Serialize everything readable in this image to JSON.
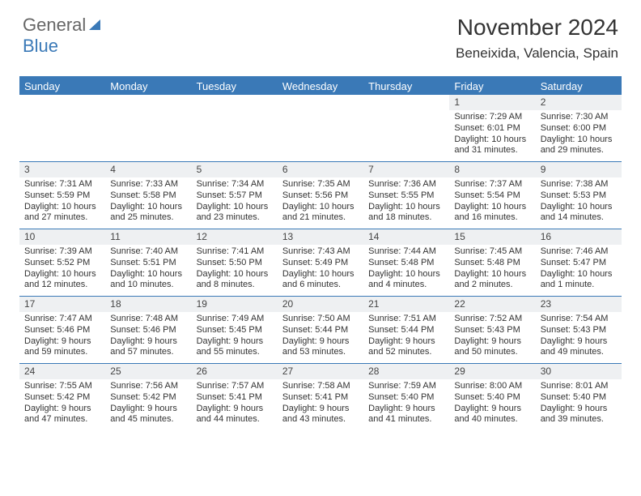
{
  "logo": {
    "part1": "General",
    "part2": "Blue"
  },
  "title": "November 2024",
  "location": "Beneixida, Valencia, Spain",
  "colors": {
    "accent": "#3a79b7",
    "header_bg": "#3a79b7",
    "day_num_bg": "#eef0f2"
  },
  "weekdays": [
    "Sunday",
    "Monday",
    "Tuesday",
    "Wednesday",
    "Thursday",
    "Friday",
    "Saturday"
  ],
  "weeks": [
    [
      {
        "n": "",
        "sr": "",
        "ss": "",
        "dl": ""
      },
      {
        "n": "",
        "sr": "",
        "ss": "",
        "dl": ""
      },
      {
        "n": "",
        "sr": "",
        "ss": "",
        "dl": ""
      },
      {
        "n": "",
        "sr": "",
        "ss": "",
        "dl": ""
      },
      {
        "n": "",
        "sr": "",
        "ss": "",
        "dl": ""
      },
      {
        "n": "1",
        "sr": "Sunrise: 7:29 AM",
        "ss": "Sunset: 6:01 PM",
        "dl": "Daylight: 10 hours and 31 minutes."
      },
      {
        "n": "2",
        "sr": "Sunrise: 7:30 AM",
        "ss": "Sunset: 6:00 PM",
        "dl": "Daylight: 10 hours and 29 minutes."
      }
    ],
    [
      {
        "n": "3",
        "sr": "Sunrise: 7:31 AM",
        "ss": "Sunset: 5:59 PM",
        "dl": "Daylight: 10 hours and 27 minutes."
      },
      {
        "n": "4",
        "sr": "Sunrise: 7:33 AM",
        "ss": "Sunset: 5:58 PM",
        "dl": "Daylight: 10 hours and 25 minutes."
      },
      {
        "n": "5",
        "sr": "Sunrise: 7:34 AM",
        "ss": "Sunset: 5:57 PM",
        "dl": "Daylight: 10 hours and 23 minutes."
      },
      {
        "n": "6",
        "sr": "Sunrise: 7:35 AM",
        "ss": "Sunset: 5:56 PM",
        "dl": "Daylight: 10 hours and 21 minutes."
      },
      {
        "n": "7",
        "sr": "Sunrise: 7:36 AM",
        "ss": "Sunset: 5:55 PM",
        "dl": "Daylight: 10 hours and 18 minutes."
      },
      {
        "n": "8",
        "sr": "Sunrise: 7:37 AM",
        "ss": "Sunset: 5:54 PM",
        "dl": "Daylight: 10 hours and 16 minutes."
      },
      {
        "n": "9",
        "sr": "Sunrise: 7:38 AM",
        "ss": "Sunset: 5:53 PM",
        "dl": "Daylight: 10 hours and 14 minutes."
      }
    ],
    [
      {
        "n": "10",
        "sr": "Sunrise: 7:39 AM",
        "ss": "Sunset: 5:52 PM",
        "dl": "Daylight: 10 hours and 12 minutes."
      },
      {
        "n": "11",
        "sr": "Sunrise: 7:40 AM",
        "ss": "Sunset: 5:51 PM",
        "dl": "Daylight: 10 hours and 10 minutes."
      },
      {
        "n": "12",
        "sr": "Sunrise: 7:41 AM",
        "ss": "Sunset: 5:50 PM",
        "dl": "Daylight: 10 hours and 8 minutes."
      },
      {
        "n": "13",
        "sr": "Sunrise: 7:43 AM",
        "ss": "Sunset: 5:49 PM",
        "dl": "Daylight: 10 hours and 6 minutes."
      },
      {
        "n": "14",
        "sr": "Sunrise: 7:44 AM",
        "ss": "Sunset: 5:48 PM",
        "dl": "Daylight: 10 hours and 4 minutes."
      },
      {
        "n": "15",
        "sr": "Sunrise: 7:45 AM",
        "ss": "Sunset: 5:48 PM",
        "dl": "Daylight: 10 hours and 2 minutes."
      },
      {
        "n": "16",
        "sr": "Sunrise: 7:46 AM",
        "ss": "Sunset: 5:47 PM",
        "dl": "Daylight: 10 hours and 1 minute."
      }
    ],
    [
      {
        "n": "17",
        "sr": "Sunrise: 7:47 AM",
        "ss": "Sunset: 5:46 PM",
        "dl": "Daylight: 9 hours and 59 minutes."
      },
      {
        "n": "18",
        "sr": "Sunrise: 7:48 AM",
        "ss": "Sunset: 5:46 PM",
        "dl": "Daylight: 9 hours and 57 minutes."
      },
      {
        "n": "19",
        "sr": "Sunrise: 7:49 AM",
        "ss": "Sunset: 5:45 PM",
        "dl": "Daylight: 9 hours and 55 minutes."
      },
      {
        "n": "20",
        "sr": "Sunrise: 7:50 AM",
        "ss": "Sunset: 5:44 PM",
        "dl": "Daylight: 9 hours and 53 minutes."
      },
      {
        "n": "21",
        "sr": "Sunrise: 7:51 AM",
        "ss": "Sunset: 5:44 PM",
        "dl": "Daylight: 9 hours and 52 minutes."
      },
      {
        "n": "22",
        "sr": "Sunrise: 7:52 AM",
        "ss": "Sunset: 5:43 PM",
        "dl": "Daylight: 9 hours and 50 minutes."
      },
      {
        "n": "23",
        "sr": "Sunrise: 7:54 AM",
        "ss": "Sunset: 5:43 PM",
        "dl": "Daylight: 9 hours and 49 minutes."
      }
    ],
    [
      {
        "n": "24",
        "sr": "Sunrise: 7:55 AM",
        "ss": "Sunset: 5:42 PM",
        "dl": "Daylight: 9 hours and 47 minutes."
      },
      {
        "n": "25",
        "sr": "Sunrise: 7:56 AM",
        "ss": "Sunset: 5:42 PM",
        "dl": "Daylight: 9 hours and 45 minutes."
      },
      {
        "n": "26",
        "sr": "Sunrise: 7:57 AM",
        "ss": "Sunset: 5:41 PM",
        "dl": "Daylight: 9 hours and 44 minutes."
      },
      {
        "n": "27",
        "sr": "Sunrise: 7:58 AM",
        "ss": "Sunset: 5:41 PM",
        "dl": "Daylight: 9 hours and 43 minutes."
      },
      {
        "n": "28",
        "sr": "Sunrise: 7:59 AM",
        "ss": "Sunset: 5:40 PM",
        "dl": "Daylight: 9 hours and 41 minutes."
      },
      {
        "n": "29",
        "sr": "Sunrise: 8:00 AM",
        "ss": "Sunset: 5:40 PM",
        "dl": "Daylight: 9 hours and 40 minutes."
      },
      {
        "n": "30",
        "sr": "Sunrise: 8:01 AM",
        "ss": "Sunset: 5:40 PM",
        "dl": "Daylight: 9 hours and 39 minutes."
      }
    ]
  ]
}
